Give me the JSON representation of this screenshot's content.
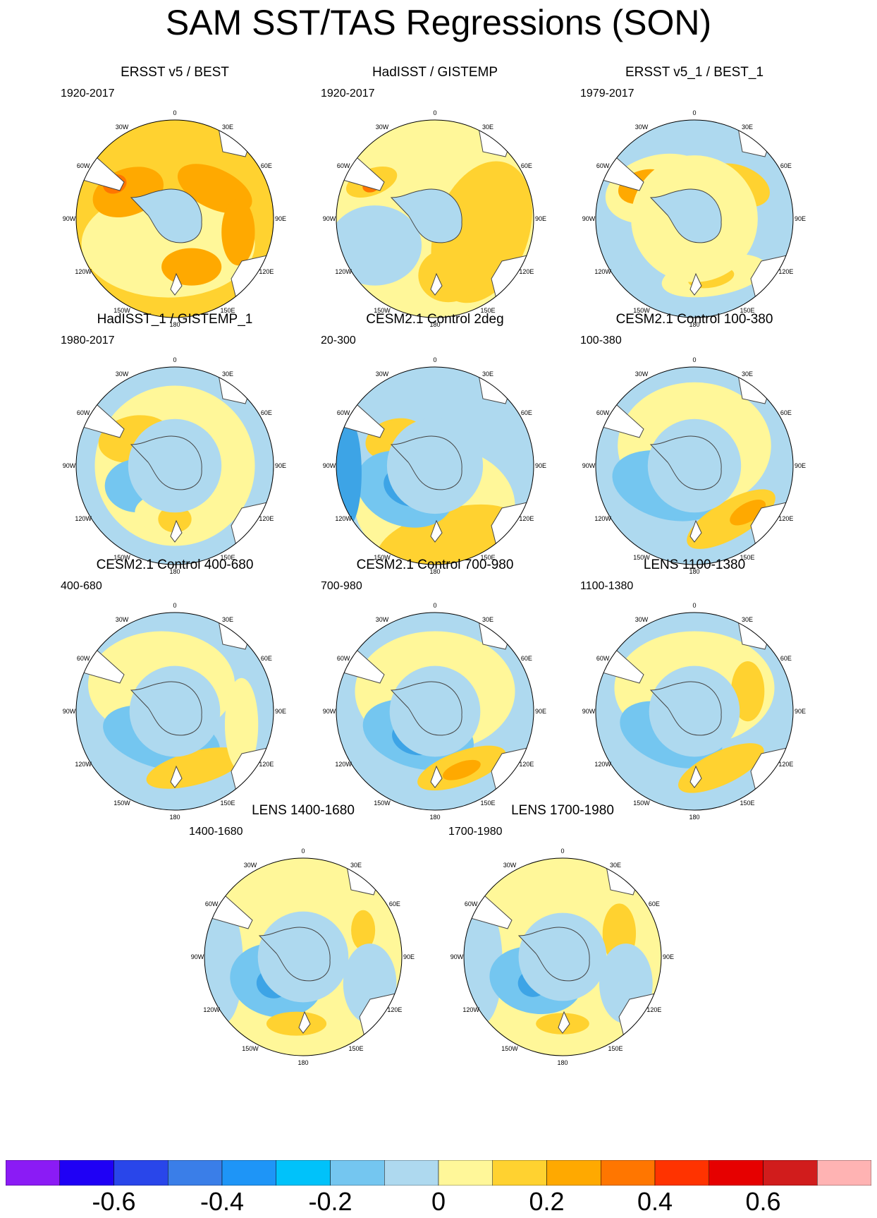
{
  "title": "SAM SST/TAS Regressions (SON)",
  "colors": {
    "land": "#ffffff",
    "coast": "#444444",
    "ice": "#aed9ef",
    "neg_light": "#aed9ef",
    "neg_mid": "#74c6f0",
    "neg_strong": "#3da4e6",
    "pos_light": "#fff799",
    "pos_mid": "#ffd230",
    "pos_strong": "#ffa900",
    "pos_deep": "#ff7600"
  },
  "map_labels": {
    "lon_0": "0",
    "lon_30e": "30E",
    "lon_60e": "60E",
    "lon_90e": "90E",
    "lon_120e": "120E",
    "lon_150e": "150E",
    "lon_180": "180",
    "lon_150w": "150W",
    "lon_120w": "120W",
    "lon_90w": "90W",
    "lon_60w": "60W",
    "lon_30w": "30W"
  },
  "panels": [
    {
      "title": "ERSST v5 / BEST",
      "period": "1920-2017"
    },
    {
      "title": "HadISST / GISTEMP",
      "period": "1920-2017"
    },
    {
      "title": "ERSST v5_1 / BEST_1",
      "period": "1979-2017"
    },
    {
      "title": "HadISST_1 / GISTEMP_1",
      "period": "1980-2017"
    },
    {
      "title": "CESM2.1 Control 2deg",
      "period": "20-300"
    },
    {
      "title": "CESM2.1 Control 100-380",
      "period": "100-380"
    },
    {
      "title": "CESM2.1 Control 400-680",
      "period": "400-680"
    },
    {
      "title": "CESM2.1 Control 700-980",
      "period": "700-980"
    },
    {
      "title": "LENS 1100-1380",
      "period": "1100-1380"
    },
    {
      "title": "LENS 1400-1680",
      "period": "1400-1680"
    },
    {
      "title": "LENS 1700-1980",
      "period": "1700-1980"
    }
  ],
  "colorbar": {
    "colors": [
      "#8b1bf5",
      "#1f00f5",
      "#2946ea",
      "#3a7ee8",
      "#1e95f7",
      "#00c2fa",
      "#74c6f0",
      "#aed9ef",
      "#fff799",
      "#ffd230",
      "#ffa900",
      "#ff7600",
      "#ff3300",
      "#e60000",
      "#d11c1c",
      "#ffb3b3"
    ],
    "labels": [
      "-0.6",
      "-0.4",
      "-0.2",
      "0",
      "0.2",
      "0.4",
      "0.6"
    ]
  }
}
